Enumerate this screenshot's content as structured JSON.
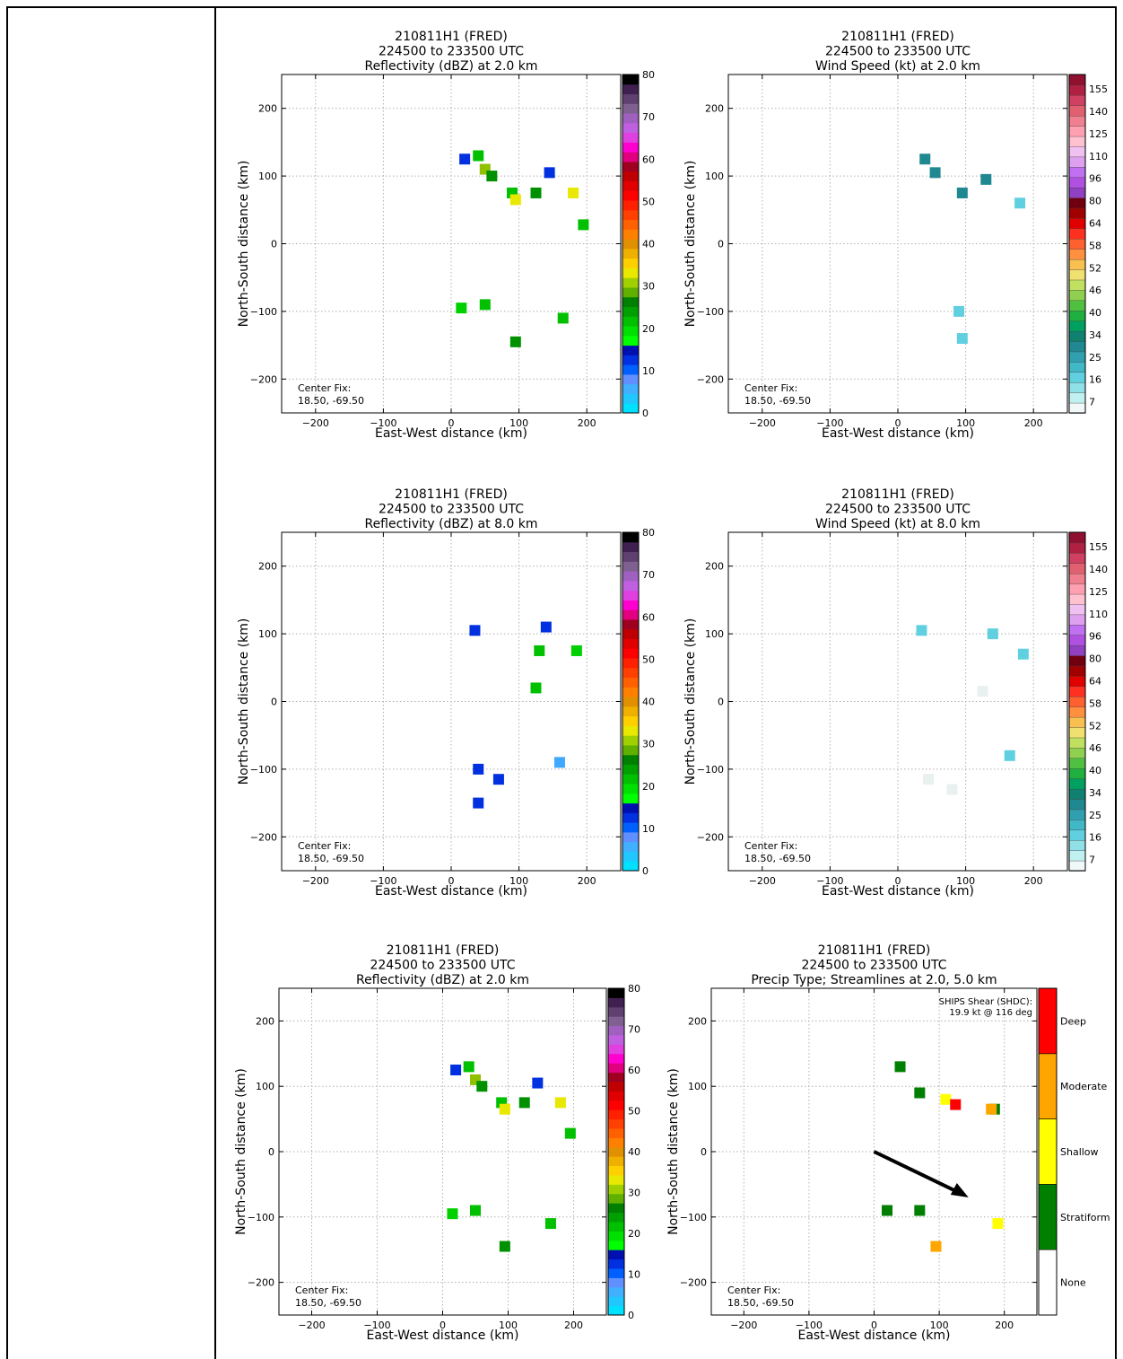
{
  "chart_data": [
    {
      "id": "p1",
      "type": "heatmap",
      "title": [
        "210811H1 (FRED)",
        "224500 to 233500 UTC",
        "Reflectivity (dBZ) at 2.0 km"
      ],
      "xlabel": "East-West distance (km)",
      "ylabel": "North-South distance (km)",
      "xlim": [
        -250,
        250
      ],
      "ylim": [
        -250,
        250
      ],
      "xticks": [
        -200,
        -100,
        0,
        100,
        200
      ],
      "yticks": [
        -200,
        -100,
        0,
        100,
        200
      ],
      "grid": true,
      "annotation": [
        "Center Fix:",
        "18.50, -69.50"
      ],
      "colorbar": {
        "scale": "reflectivity",
        "ticks": [
          "0",
          "10",
          "20",
          "30",
          "40",
          "50",
          "60",
          "70",
          "80"
        ]
      },
      "echoes": [
        {
          "x": 40,
          "y": 130,
          "v": 22
        },
        {
          "x": 20,
          "y": 125,
          "v": 12
        },
        {
          "x": 50,
          "y": 110,
          "v": 35
        },
        {
          "x": 60,
          "y": 100,
          "v": 28
        },
        {
          "x": 90,
          "y": 75,
          "v": 25
        },
        {
          "x": 95,
          "y": 65,
          "v": 38
        },
        {
          "x": 125,
          "y": 75,
          "v": 30
        },
        {
          "x": 145,
          "y": 105,
          "v": 10
        },
        {
          "x": 180,
          "y": 75,
          "v": 36
        },
        {
          "x": 195,
          "y": 28,
          "v": 22
        },
        {
          "x": 15,
          "y": -95,
          "v": 20
        },
        {
          "x": 50,
          "y": -90,
          "v": 24
        },
        {
          "x": 95,
          "y": -145,
          "v": 30
        },
        {
          "x": 165,
          "y": -110,
          "v": 22
        }
      ]
    },
    {
      "id": "p2",
      "type": "heatmap",
      "title": [
        "210811H1 (FRED)",
        "224500 to 233500 UTC",
        "Wind Speed (kt) at 2.0 km"
      ],
      "xlabel": "East-West distance (km)",
      "ylabel": "North-South distance (km)",
      "xlim": [
        -250,
        250
      ],
      "ylim": [
        -250,
        250
      ],
      "xticks": [
        -200,
        -100,
        0,
        100,
        200
      ],
      "yticks": [
        -200,
        -100,
        0,
        100,
        200
      ],
      "grid": true,
      "annotation": [
        "Center Fix:",
        "18.50, -69.50"
      ],
      "colorbar": {
        "scale": "wind",
        "ticks": [
          "7",
          "16",
          "25",
          "34",
          "40",
          "46",
          "52",
          "58",
          "64",
          "80",
          "96",
          "110",
          "125",
          "140",
          "155"
        ]
      },
      "echoes": [
        {
          "x": 40,
          "y": 125,
          "v": 25
        },
        {
          "x": 55,
          "y": 105,
          "v": 25
        },
        {
          "x": 95,
          "y": 75,
          "v": 25
        },
        {
          "x": 130,
          "y": 95,
          "v": 25
        },
        {
          "x": 180,
          "y": 60,
          "v": 16
        },
        {
          "x": 90,
          "y": -100,
          "v": 16
        },
        {
          "x": 95,
          "y": -140,
          "v": 16
        }
      ]
    },
    {
      "id": "p3",
      "type": "heatmap",
      "title": [
        "210811H1 (FRED)",
        "224500 to 233500 UTC",
        "Reflectivity (dBZ) at 8.0 km"
      ],
      "xlabel": "East-West distance (km)",
      "ylabel": "North-South distance (km)",
      "xlim": [
        -250,
        250
      ],
      "ylim": [
        -250,
        250
      ],
      "xticks": [
        -200,
        -100,
        0,
        100,
        200
      ],
      "yticks": [
        -200,
        -100,
        0,
        100,
        200
      ],
      "grid": true,
      "annotation": [
        "Center Fix:",
        "18.50, -69.50"
      ],
      "colorbar": {
        "scale": "reflectivity",
        "ticks": [
          "0",
          "10",
          "20",
          "30",
          "40",
          "50",
          "60",
          "70",
          "80"
        ]
      },
      "echoes": [
        {
          "x": 35,
          "y": 105,
          "v": 12
        },
        {
          "x": 140,
          "y": 110,
          "v": 12
        },
        {
          "x": 130,
          "y": 75,
          "v": 22
        },
        {
          "x": 185,
          "y": 75,
          "v": 20
        },
        {
          "x": 125,
          "y": 20,
          "v": 22
        },
        {
          "x": 40,
          "y": -100,
          "v": 10
        },
        {
          "x": 70,
          "y": -115,
          "v": 12
        },
        {
          "x": 40,
          "y": -150,
          "v": 12
        },
        {
          "x": 160,
          "y": -90,
          "v": 5
        }
      ]
    },
    {
      "id": "p4",
      "type": "heatmap",
      "title": [
        "210811H1 (FRED)",
        "224500 to 233500 UTC",
        "Wind Speed (kt) at 8.0 km"
      ],
      "xlabel": "East-West distance (km)",
      "ylabel": "North-South distance (km)",
      "xlim": [
        -250,
        250
      ],
      "ylim": [
        -250,
        250
      ],
      "xticks": [
        -200,
        -100,
        0,
        100,
        200
      ],
      "yticks": [
        -200,
        -100,
        0,
        100,
        200
      ],
      "grid": true,
      "annotation": [
        "Center Fix:",
        "18.50, -69.50"
      ],
      "colorbar": {
        "scale": "wind",
        "ticks": [
          "7",
          "16",
          "25",
          "34",
          "40",
          "46",
          "52",
          "58",
          "64",
          "80",
          "96",
          "110",
          "125",
          "140",
          "155"
        ]
      },
      "echoes": [
        {
          "x": 35,
          "y": 105,
          "v": 16
        },
        {
          "x": 140,
          "y": 100,
          "v": 16
        },
        {
          "x": 185,
          "y": 70,
          "v": 16
        },
        {
          "x": 125,
          "y": 15,
          "v": 7
        },
        {
          "x": 45,
          "y": -115,
          "v": 7
        },
        {
          "x": 80,
          "y": -130,
          "v": 7
        },
        {
          "x": 165,
          "y": -80,
          "v": 16
        }
      ]
    },
    {
      "id": "p5",
      "type": "heatmap",
      "title": [
        "210811H1 (FRED)",
        "224500 to 233500 UTC",
        "Reflectivity (dBZ) at 2.0 km"
      ],
      "xlabel": "East-West distance (km)",
      "ylabel": "North-South distance (km)",
      "xlim": [
        -250,
        250
      ],
      "ylim": [
        -250,
        250
      ],
      "xticks": [
        -200,
        -100,
        0,
        100,
        200
      ],
      "yticks": [
        -200,
        -100,
        0,
        100,
        200
      ],
      "grid": true,
      "annotation": [
        "Center Fix:",
        "18.50, -69.50"
      ],
      "colorbar": {
        "scale": "reflectivity",
        "ticks": [
          "0",
          "10",
          "20",
          "30",
          "40",
          "50",
          "60",
          "70",
          "80"
        ]
      },
      "echoes": [
        {
          "x": 40,
          "y": 130,
          "v": 22
        },
        {
          "x": 20,
          "y": 125,
          "v": 12
        },
        {
          "x": 50,
          "y": 110,
          "v": 35
        },
        {
          "x": 60,
          "y": 100,
          "v": 28
        },
        {
          "x": 90,
          "y": 75,
          "v": 25
        },
        {
          "x": 95,
          "y": 65,
          "v": 38
        },
        {
          "x": 125,
          "y": 75,
          "v": 30
        },
        {
          "x": 145,
          "y": 105,
          "v": 10
        },
        {
          "x": 180,
          "y": 75,
          "v": 36
        },
        {
          "x": 195,
          "y": 28,
          "v": 22
        },
        {
          "x": 15,
          "y": -95,
          "v": 20
        },
        {
          "x": 50,
          "y": -90,
          "v": 24
        },
        {
          "x": 95,
          "y": -145,
          "v": 30
        },
        {
          "x": 165,
          "y": -110,
          "v": 22
        }
      ]
    },
    {
      "id": "p6",
      "type": "heatmap",
      "title": [
        "210811H1 (FRED)",
        "224500 to 233500 UTC",
        "Precip Type; Streamlines at 2.0, 5.0 km"
      ],
      "xlabel": "East-West distance (km)",
      "ylabel": "North-South distance (km)",
      "xlim": [
        -250,
        250
      ],
      "ylim": [
        -250,
        250
      ],
      "xticks": [
        -200,
        -100,
        0,
        100,
        200
      ],
      "yticks": [
        -200,
        -100,
        0,
        100,
        200
      ],
      "grid": true,
      "annotation": [
        "Center Fix:",
        "18.50, -69.50"
      ],
      "shear_label": [
        "SHIPS Shear (SHDC):",
        "19.9 kt @ 116 deg"
      ],
      "colorbar": {
        "scale": "precip",
        "labels": [
          "None",
          "Stratiform",
          "Shallow",
          "Moderate",
          "Deep"
        ]
      },
      "echoes": [
        {
          "x": 40,
          "y": 130,
          "c": "Stratiform"
        },
        {
          "x": 70,
          "y": 90,
          "c": "Stratiform"
        },
        {
          "x": 110,
          "y": 80,
          "c": "Shallow"
        },
        {
          "x": 125,
          "y": 72,
          "c": "Deep"
        },
        {
          "x": 185,
          "y": 65,
          "c": "Stratiform"
        },
        {
          "x": 180,
          "y": 65,
          "c": "Moderate"
        },
        {
          "x": 20,
          "y": -90,
          "c": "Stratiform"
        },
        {
          "x": 70,
          "y": -90,
          "c": "Stratiform"
        },
        {
          "x": 95,
          "y": -145,
          "c": "Moderate"
        },
        {
          "x": 190,
          "y": -110,
          "c": "Shallow"
        }
      ],
      "shear_vector": {
        "from": [
          0,
          0
        ],
        "to": [
          145,
          -70
        ]
      }
    }
  ]
}
